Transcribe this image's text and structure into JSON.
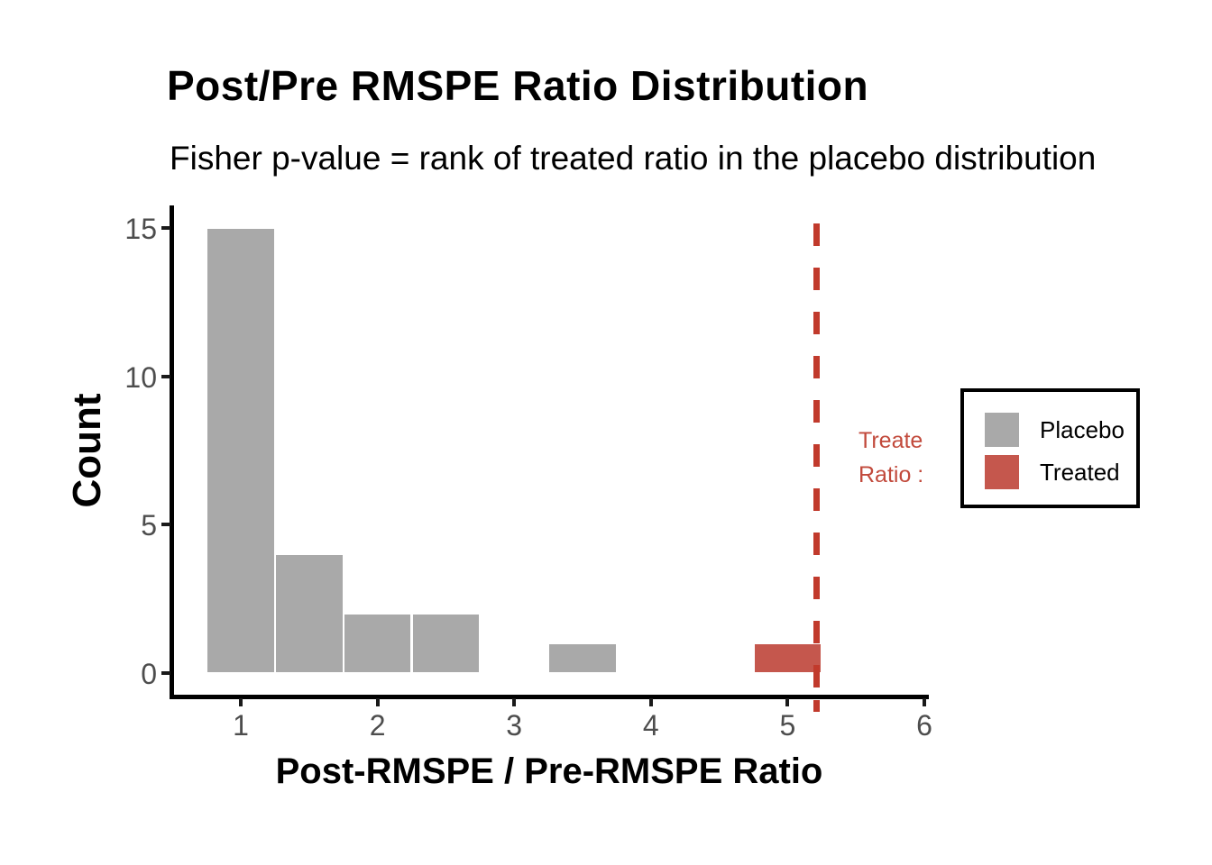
{
  "title": "Post/Pre RMSPE Ratio Distribution",
  "subtitle": "Fisher p-value = rank of treated ratio in the placebo distribution",
  "chart_data": {
    "type": "bar",
    "subtype": "histogram",
    "title": "Post/Pre RMSPE Ratio Distribution",
    "subtitle": "Fisher p-value = rank of treated ratio in the placebo distribution",
    "xlabel": "Post-RMSPE / Pre-RMSPE Ratio",
    "ylabel": "Count",
    "x_ticks": [
      1,
      2,
      3,
      4,
      5,
      6
    ],
    "y_ticks": [
      0,
      5,
      10,
      15
    ],
    "xlim": [
      0.48,
      6.04
    ],
    "ylim": [
      0,
      15.75
    ],
    "binwidth": 0.5,
    "grid": false,
    "bins": [
      {
        "x0": 0.75,
        "x1": 1.25,
        "count": 15,
        "series": "Placebo"
      },
      {
        "x0": 1.25,
        "x1": 1.75,
        "count": 4,
        "series": "Placebo"
      },
      {
        "x0": 1.75,
        "x1": 2.25,
        "count": 2,
        "series": "Placebo"
      },
      {
        "x0": 2.25,
        "x1": 2.75,
        "count": 2,
        "series": "Placebo"
      },
      {
        "x0": 3.25,
        "x1": 3.75,
        "count": 1,
        "series": "Placebo"
      },
      {
        "x0": 4.75,
        "x1": 5.25,
        "count": 1,
        "series": "Treated"
      }
    ],
    "vline": {
      "x": 5.21,
      "style": "dashed",
      "color": "#c13a2c"
    },
    "annotation": {
      "line1": "Treate",
      "line2": "Ratio :",
      "color": "#c24a3c"
    },
    "legend": {
      "position": "right",
      "border_color": "#000000",
      "entries": [
        {
          "label": "Placebo",
          "color": "#a9a9a9"
        },
        {
          "label": "Treated",
          "color": "#c5574d"
        }
      ]
    },
    "colors": {
      "Placebo": "#a9a9a9",
      "Treated": "#c5574d"
    },
    "text_colors": {
      "tick_labels": "#4d4d4d",
      "axis_text": "#000000"
    }
  }
}
